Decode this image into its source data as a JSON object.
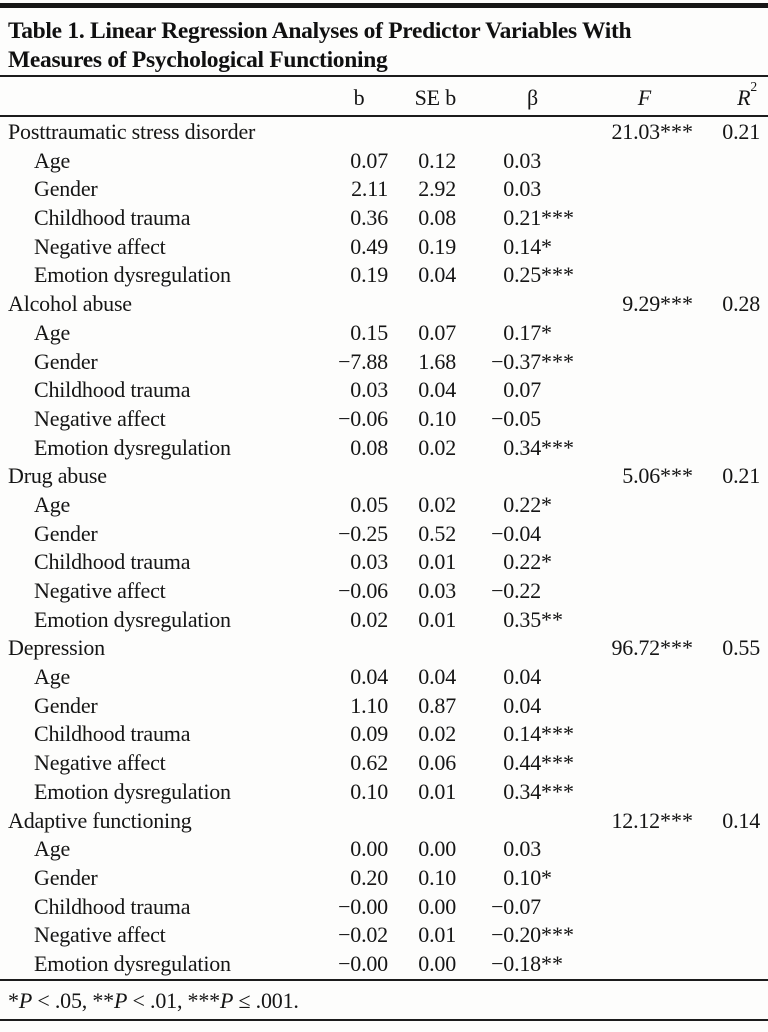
{
  "title_lines": [
    "Table 1. Linear Regression Analyses of Predictor Variables With",
    "Measures of Psychological Functioning"
  ],
  "columns": {
    "label": "",
    "b": "b",
    "se_b": "SE b",
    "beta": "β",
    "f": "F",
    "r2_base": "R",
    "r2_sup": "2"
  },
  "chart_data": {
    "type": "table",
    "title": "Table 1. Linear Regression Analyses of Predictor Variables With Measures of Psychological Functioning",
    "column_headers": [
      "",
      "b",
      "SE b",
      "β",
      "F",
      "R2"
    ]
  },
  "sections": [
    {
      "label": "Posttraumatic stress disorder",
      "f": "21.03",
      "f_stars": "***",
      "r2": "0.21",
      "rows": [
        {
          "label": "Age",
          "b": "0.07",
          "se": "0.12",
          "beta": "0.03",
          "beta_stars": ""
        },
        {
          "label": "Gender",
          "b": "2.11",
          "se": "2.92",
          "beta": "0.03",
          "beta_stars": ""
        },
        {
          "label": "Childhood trauma",
          "b": "0.36",
          "se": "0.08",
          "beta": "0.21",
          "beta_stars": "***"
        },
        {
          "label": "Negative affect",
          "b": "0.49",
          "se": "0.19",
          "beta": "0.14",
          "beta_stars": "*"
        },
        {
          "label": "Emotion dysregulation",
          "b": "0.19",
          "se": "0.04",
          "beta": "0.25",
          "beta_stars": "***"
        }
      ]
    },
    {
      "label": "Alcohol abuse",
      "f": "9.29",
      "f_stars": "***",
      "r2": "0.28",
      "rows": [
        {
          "label": "Age",
          "b": "0.15",
          "se": "0.07",
          "beta": "0.17",
          "beta_stars": "*"
        },
        {
          "label": "Gender",
          "b": "−7.88",
          "se": "1.68",
          "beta": "−0.37",
          "beta_stars": "***"
        },
        {
          "label": "Childhood trauma",
          "b": "0.03",
          "se": "0.04",
          "beta": "0.07",
          "beta_stars": ""
        },
        {
          "label": "Negative affect",
          "b": "−0.06",
          "se": "0.10",
          "beta": "−0.05",
          "beta_stars": ""
        },
        {
          "label": "Emotion dysregulation",
          "b": "0.08",
          "se": "0.02",
          "beta": "0.34",
          "beta_stars": "***"
        }
      ]
    },
    {
      "label": "Drug abuse",
      "f": "5.06",
      "f_stars": "***",
      "r2": "0.21",
      "rows": [
        {
          "label": "Age",
          "b": "0.05",
          "se": "0.02",
          "beta": "0.22",
          "beta_stars": "*"
        },
        {
          "label": "Gender",
          "b": "−0.25",
          "se": "0.52",
          "beta": "−0.04",
          "beta_stars": ""
        },
        {
          "label": "Childhood trauma",
          "b": "0.03",
          "se": "0.01",
          "beta": "0.22",
          "beta_stars": "*"
        },
        {
          "label": "Negative affect",
          "b": "−0.06",
          "se": "0.03",
          "beta": "−0.22",
          "beta_stars": ""
        },
        {
          "label": "Emotion dysregulation",
          "b": "0.02",
          "se": "0.01",
          "beta": "0.35",
          "beta_stars": "**"
        }
      ]
    },
    {
      "label": "Depression",
      "f": "96.72",
      "f_stars": "***",
      "r2": "0.55",
      "rows": [
        {
          "label": "Age",
          "b": "0.04",
          "se": "0.04",
          "beta": "0.04",
          "beta_stars": ""
        },
        {
          "label": "Gender",
          "b": "1.10",
          "se": "0.87",
          "beta": "0.04",
          "beta_stars": ""
        },
        {
          "label": "Childhood trauma",
          "b": "0.09",
          "se": "0.02",
          "beta": "0.14",
          "beta_stars": "***"
        },
        {
          "label": "Negative affect",
          "b": "0.62",
          "se": "0.06",
          "beta": "0.44",
          "beta_stars": "***"
        },
        {
          "label": "Emotion dysregulation",
          "b": "0.10",
          "se": "0.01",
          "beta": "0.34",
          "beta_stars": "***"
        }
      ]
    },
    {
      "label": "Adaptive functioning",
      "f": "12.12",
      "f_stars": "***",
      "r2": "0.14",
      "rows": [
        {
          "label": "Age",
          "b": "0.00",
          "se": "0.00",
          "beta": "0.03",
          "beta_stars": ""
        },
        {
          "label": "Gender",
          "b": "0.20",
          "se": "0.10",
          "beta": "0.10",
          "beta_stars": "*"
        },
        {
          "label": "Childhood trauma",
          "b": "−0.00",
          "se": "0.00",
          "beta": "−0.07",
          "beta_stars": ""
        },
        {
          "label": "Negative affect",
          "b": "−0.02",
          "se": "0.01",
          "beta": "−0.20",
          "beta_stars": "***"
        },
        {
          "label": "Emotion dysregulation",
          "b": "−0.00",
          "se": "0.00",
          "beta": "−0.18",
          "beta_stars": "**"
        }
      ]
    }
  ],
  "footnote": {
    "p_symbol": "P",
    "items": [
      {
        "stars": "*",
        "cond": " < .05, "
      },
      {
        "stars": "**",
        "cond": " < .01, "
      },
      {
        "stars": "***",
        "cond": " ≤ .001."
      }
    ]
  }
}
